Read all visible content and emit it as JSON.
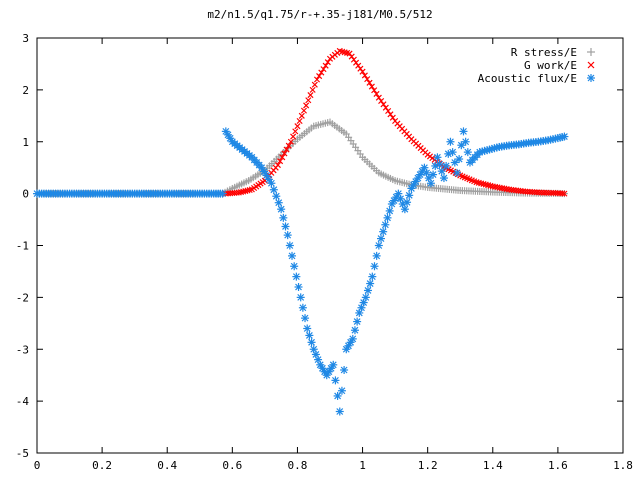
{
  "chart_data": {
    "type": "scatter",
    "title": "m2/n1.5/q1.75/r-+.35-j181/M0.5/512",
    "xlabel": "",
    "ylabel": "",
    "xlim": [
      0,
      1.8
    ],
    "ylim": [
      -5,
      3
    ],
    "xticks": [
      "0",
      "0.2",
      "0.4",
      "0.6",
      "0.8",
      "1",
      "1.2",
      "1.4",
      "1.6",
      "1.8"
    ],
    "yticks": [
      "3",
      "2",
      "1",
      "0",
      "-1",
      "-2",
      "-3",
      "-4",
      "-5"
    ],
    "grid": false,
    "legend_position": "top-right",
    "series": [
      {
        "name": "R stress/E",
        "marker": "plus",
        "color": "#a0a0a0",
        "x": [
          0,
          0.1,
          0.2,
          0.3,
          0.4,
          0.5,
          0.57,
          0.6,
          0.65,
          0.7,
          0.75,
          0.8,
          0.85,
          0.9,
          0.95,
          1.0,
          1.05,
          1.1,
          1.15,
          1.2,
          1.3,
          1.4,
          1.5,
          1.6,
          1.62
        ],
        "y": [
          0,
          0,
          0,
          0,
          0,
          0,
          0,
          0.1,
          0.25,
          0.45,
          0.75,
          1.05,
          1.3,
          1.38,
          1.15,
          0.7,
          0.4,
          0.25,
          0.17,
          0.12,
          0.06,
          0.03,
          0.01,
          0.005,
          0.0
        ]
      },
      {
        "name": "G work/E",
        "marker": "cross",
        "color": "#ff0000",
        "x": [
          0.58,
          0.62,
          0.66,
          0.7,
          0.74,
          0.78,
          0.82,
          0.86,
          0.9,
          0.93,
          0.96,
          1.0,
          1.05,
          1.1,
          1.15,
          1.2,
          1.25,
          1.3,
          1.35,
          1.4,
          1.45,
          1.5,
          1.55,
          1.6,
          1.62
        ],
        "y": [
          0.0,
          0.02,
          0.08,
          0.25,
          0.55,
          1.0,
          1.6,
          2.2,
          2.6,
          2.75,
          2.7,
          2.35,
          1.85,
          1.4,
          1.05,
          0.75,
          0.52,
          0.35,
          0.22,
          0.14,
          0.08,
          0.04,
          0.02,
          0.01,
          0.0
        ]
      },
      {
        "name": "Acoustic flux/E",
        "marker": "star",
        "color": "#1f88e5",
        "x": [
          0,
          0.05,
          0.1,
          0.15,
          0.2,
          0.25,
          0.3,
          0.35,
          0.4,
          0.45,
          0.5,
          0.55,
          0.57,
          0.58,
          0.6,
          0.63,
          0.66,
          0.69,
          0.72,
          0.75,
          0.77,
          0.79,
          0.81,
          0.83,
          0.85,
          0.87,
          0.89,
          0.91,
          0.93,
          0.95,
          0.97,
          0.99,
          1.01,
          1.03,
          1.05,
          1.07,
          1.09,
          1.11,
          1.13,
          1.15,
          1.17,
          1.19,
          1.21,
          1.23,
          1.25,
          1.27,
          1.29,
          1.31,
          1.33,
          1.36,
          1.39,
          1.42,
          1.45,
          1.48,
          1.51,
          1.54,
          1.57,
          1.6,
          1.62
        ],
        "y": [
          0,
          0,
          0,
          0,
          0,
          0,
          0,
          0,
          0,
          0,
          0,
          0,
          0,
          1.2,
          1.0,
          0.85,
          0.7,
          0.5,
          0.2,
          -0.3,
          -0.8,
          -1.4,
          -2.0,
          -2.6,
          -3.0,
          -3.3,
          -3.5,
          -3.3,
          -4.2,
          -3.0,
          -2.8,
          -2.3,
          -2.0,
          -1.6,
          -1.0,
          -0.6,
          -0.2,
          0.0,
          -0.3,
          0.1,
          0.3,
          0.5,
          0.2,
          0.7,
          0.3,
          1.0,
          0.4,
          1.2,
          0.6,
          0.8,
          0.85,
          0.9,
          0.93,
          0.95,
          0.98,
          1.0,
          1.03,
          1.07,
          1.1
        ]
      }
    ]
  }
}
